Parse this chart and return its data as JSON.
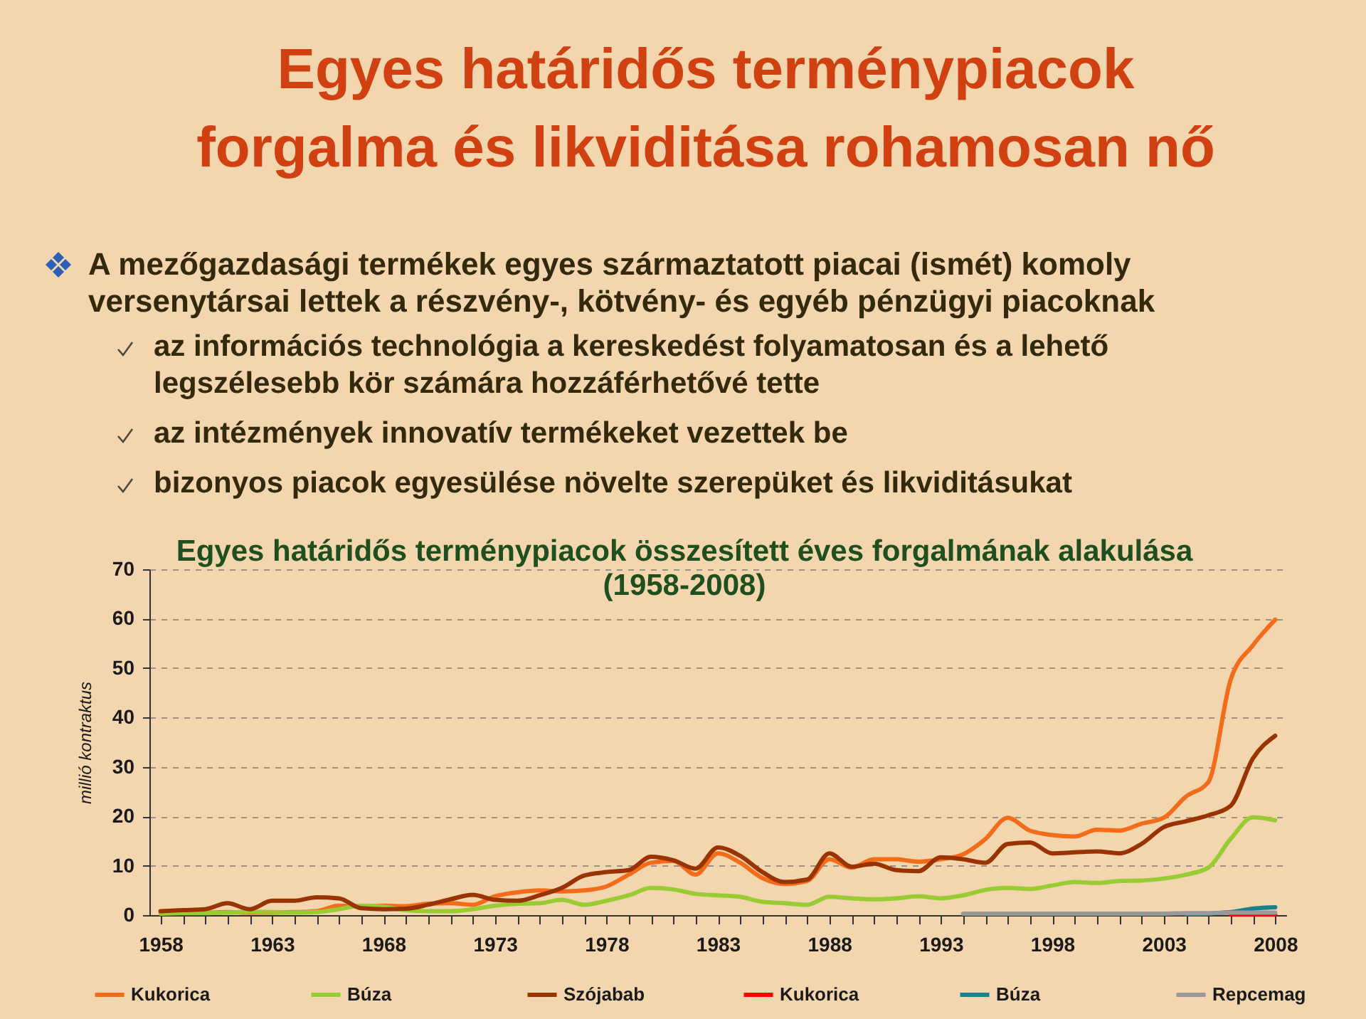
{
  "chart_data": {
    "type": "line",
    "title": "Egyes határidős terménypiacok forgalma és likviditása rohamosan nő",
    "subtitle": "Egyes határidős terménypiacok összesített éves forgalmának alakulása (1958-2008)",
    "ylabel": "millió kontraktus",
    "annotations": [
      "A mezőgazdasági termékek egyes származtatott piacai (ismét) komoly versenytársai lettek a részvény-, kötvény- és egyéb pénzügyi piacoknak",
      "az információs technológia a kereskedést folyamatosan és a lehető legszélesebb kör számára hozzáférhetővé tette",
      "az intézmények innovatív termékeket vezettek be",
      "bizonyos piacok egyesülése növelte szerepüket és likviditásukat"
    ],
    "x": [
      1958,
      1959,
      1960,
      1961,
      1962,
      1963,
      1964,
      1965,
      1966,
      1967,
      1968,
      1969,
      1970,
      1971,
      1972,
      1973,
      1974,
      1975,
      1976,
      1977,
      1978,
      1979,
      1980,
      1981,
      1982,
      1983,
      1984,
      1985,
      1986,
      1987,
      1988,
      1989,
      1990,
      1991,
      1992,
      1993,
      1994,
      1995,
      1996,
      1997,
      1998,
      1999,
      2000,
      2001,
      2002,
      2003,
      2004,
      2005,
      2006,
      2007,
      2008
    ],
    "series": [
      {
        "name": "Kukorica",
        "color": "#f26c1a",
        "values": [
          0.5,
          0.5,
          0.5,
          0.6,
          0.5,
          0.5,
          0.6,
          0.8,
          1.9,
          1.7,
          1.9,
          1.8,
          2.3,
          2.4,
          2.1,
          3.8,
          4.6,
          5.0,
          4.8,
          5.0,
          5.8,
          8.2,
          10.6,
          11.0,
          8.2,
          12.5,
          10.6,
          7.5,
          6.3,
          6.9,
          11.3,
          9.6,
          11.3,
          11.3,
          10.8,
          11.3,
          12.3,
          15.4,
          19.7,
          17.1,
          16.2,
          15.9,
          17.3,
          17.1,
          18.5,
          19.7,
          24.0,
          26.9,
          47.6,
          54.6,
          59.8
        ]
      },
      {
        "name": "Búza",
        "color": "#99cc33",
        "values": [
          0.3,
          0.4,
          0.4,
          0.5,
          0.7,
          0.6,
          0.5,
          0.6,
          1.2,
          1.9,
          1.7,
          1.0,
          0.8,
          0.8,
          1.2,
          1.9,
          2.3,
          2.4,
          3.1,
          2.1,
          2.9,
          4.0,
          5.5,
          5.2,
          4.3,
          4.0,
          3.7,
          2.7,
          2.4,
          2.1,
          3.7,
          3.4,
          3.2,
          3.4,
          3.8,
          3.4,
          4.0,
          5.1,
          5.5,
          5.3,
          6.0,
          6.7,
          6.5,
          6.9,
          7.0,
          7.4,
          8.2,
          9.6,
          15.4,
          19.8,
          19.2
        ]
      },
      {
        "name": "Szójabab",
        "color": "#993300",
        "values": [
          0.8,
          1.0,
          1.2,
          2.4,
          1.2,
          2.9,
          2.9,
          3.6,
          3.4,
          1.4,
          1.2,
          1.3,
          2.1,
          3.2,
          4.1,
          3.1,
          2.9,
          4.0,
          5.5,
          8.0,
          8.7,
          9.1,
          11.8,
          11.1,
          9.4,
          13.7,
          12.0,
          8.7,
          6.7,
          7.2,
          12.5,
          9.8,
          10.4,
          9.1,
          8.9,
          11.7,
          11.3,
          10.6,
          14.4,
          14.7,
          12.5,
          12.7,
          12.9,
          12.5,
          14.4,
          17.8,
          19.0,
          20.2,
          22.1,
          31.7,
          36.3
        ]
      },
      {
        "name": "Kukorica",
        "color": "#ff0000",
        "x": [
          2006,
          2007,
          2008
        ],
        "values": [
          0.1,
          0.1,
          0.1
        ]
      },
      {
        "name": "Búza",
        "color": "#17808c",
        "x": [
          2004,
          2005,
          2006,
          2007,
          2008
        ],
        "values": [
          0.2,
          0.3,
          0.6,
          1.3,
          1.6
        ]
      },
      {
        "name": "Repcemag",
        "color": "#999999",
        "x": [
          1994,
          1995,
          1996,
          1997,
          1998,
          1999,
          2000,
          2001,
          2002,
          2003,
          2004,
          2005,
          2006,
          2007,
          2008
        ],
        "values": [
          0.3,
          0.3,
          0.3,
          0.3,
          0.3,
          0.3,
          0.3,
          0.3,
          0.3,
          0.3,
          0.4,
          0.4,
          0.5,
          0.5,
          0.5
        ]
      }
    ],
    "xlim": [
      1957.5,
      2008.5
    ],
    "xticks": [
      1958,
      {
        "value": 1959,
        "label": null
      },
      {
        "value": 1960,
        "label": null
      },
      {
        "value": 1961,
        "label": null
      },
      {
        "value": 1962,
        "label": null
      },
      1963,
      {
        "value": 1964,
        "label": null
      },
      {
        "value": 1965,
        "label": null
      },
      {
        "value": 1966,
        "label": null
      },
      {
        "value": 1967,
        "label": null
      },
      1968,
      {
        "value": 1969,
        "label": null
      },
      {
        "value": 1970,
        "label": null
      },
      {
        "value": 1971,
        "label": null
      },
      {
        "value": 1972,
        "label": null
      },
      1973,
      {
        "value": 1974,
        "label": null
      },
      {
        "value": 1975,
        "label": null
      },
      {
        "value": 1976,
        "label": null
      },
      {
        "value": 1977,
        "label": null
      },
      1978,
      {
        "value": 1979,
        "label": null
      },
      {
        "value": 1980,
        "label": null
      },
      {
        "value": 1981,
        "label": null
      },
      {
        "value": 1982,
        "label": null
      },
      1983,
      {
        "value": 1984,
        "label": null
      },
      {
        "value": 1985,
        "label": null
      },
      {
        "value": 1986,
        "label": null
      },
      {
        "value": 1987,
        "label": null
      },
      1988,
      {
        "value": 1989,
        "label": null
      },
      {
        "value": 1990,
        "label": null
      },
      {
        "value": 1991,
        "label": null
      },
      {
        "value": 1992,
        "label": null
      },
      1993,
      {
        "value": 1994,
        "label": null
      },
      {
        "value": 1995,
        "label": null
      },
      {
        "value": 1996,
        "label": null
      },
      {
        "value": 1997,
        "label": null
      },
      1998,
      {
        "value": 1999,
        "label": null
      },
      {
        "value": 2000,
        "label": null
      },
      {
        "value": 2001,
        "label": null
      },
      {
        "value": 2002,
        "label": null
      },
      2003,
      {
        "value": 2004,
        "label": null
      },
      {
        "value": 2005,
        "label": null
      },
      {
        "value": 2006,
        "label": null
      },
      {
        "value": 2007,
        "label": null
      },
      2008
    ],
    "ylim": [
      0,
      70
    ],
    "yticks": [
      0,
      10,
      20,
      30,
      40,
      50,
      60,
      70
    ],
    "grid": "y",
    "legend": "bottom",
    "line_style": "solid"
  }
}
